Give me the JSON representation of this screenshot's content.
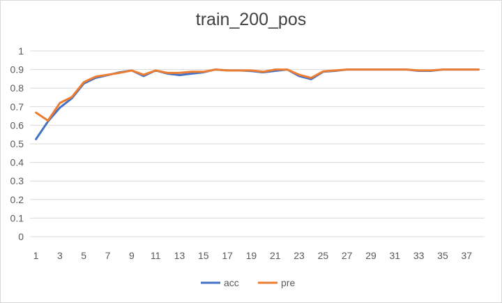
{
  "chart_data": {
    "type": "line",
    "title": "train_200_pos",
    "xlabel": "",
    "ylabel": "",
    "ylim": [
      0,
      1
    ],
    "yticks": [
      0,
      0.1,
      0.2,
      0.3,
      0.4,
      0.5,
      0.6,
      0.7,
      0.8,
      0.9,
      1
    ],
    "ytick_labels": [
      "0",
      "0.1",
      "0.2",
      "0.3",
      "0.4",
      "0.5",
      "0.6",
      "0.7",
      "0.8",
      "0.9",
      "1"
    ],
    "x": [
      1,
      2,
      3,
      4,
      5,
      6,
      7,
      8,
      9,
      10,
      11,
      12,
      13,
      14,
      15,
      16,
      17,
      18,
      19,
      20,
      21,
      22,
      23,
      24,
      25,
      26,
      27,
      28,
      29,
      30,
      31,
      32,
      33,
      34,
      35,
      36,
      37,
      38
    ],
    "xtick_labels": [
      "1",
      "3",
      "5",
      "7",
      "9",
      "11",
      "13",
      "15",
      "17",
      "19",
      "21",
      "23",
      "25",
      "27",
      "29",
      "31",
      "33",
      "35",
      "37"
    ],
    "grid": true,
    "legend_position": "bottom",
    "series": [
      {
        "name": "acc",
        "color": "#4472C4",
        "values": [
          0.525,
          0.62,
          0.695,
          0.745,
          0.825,
          0.855,
          0.87,
          0.885,
          0.895,
          0.865,
          0.895,
          0.878,
          0.87,
          0.878,
          0.885,
          0.9,
          0.895,
          0.895,
          0.892,
          0.885,
          0.893,
          0.9,
          0.865,
          0.848,
          0.888,
          0.893,
          0.9,
          0.9,
          0.9,
          0.9,
          0.9,
          0.9,
          0.893,
          0.893,
          0.9,
          0.9,
          0.9,
          0.9
        ]
      },
      {
        "name": "pre",
        "color": "#ED7D31",
        "values": [
          0.668,
          0.625,
          0.72,
          0.752,
          0.832,
          0.862,
          0.872,
          0.882,
          0.895,
          0.872,
          0.895,
          0.882,
          0.882,
          0.888,
          0.888,
          0.9,
          0.895,
          0.895,
          0.895,
          0.888,
          0.9,
          0.9,
          0.872,
          0.855,
          0.89,
          0.895,
          0.9,
          0.9,
          0.9,
          0.9,
          0.9,
          0.9,
          0.895,
          0.895,
          0.9,
          0.9,
          0.9,
          0.9
        ]
      }
    ]
  }
}
